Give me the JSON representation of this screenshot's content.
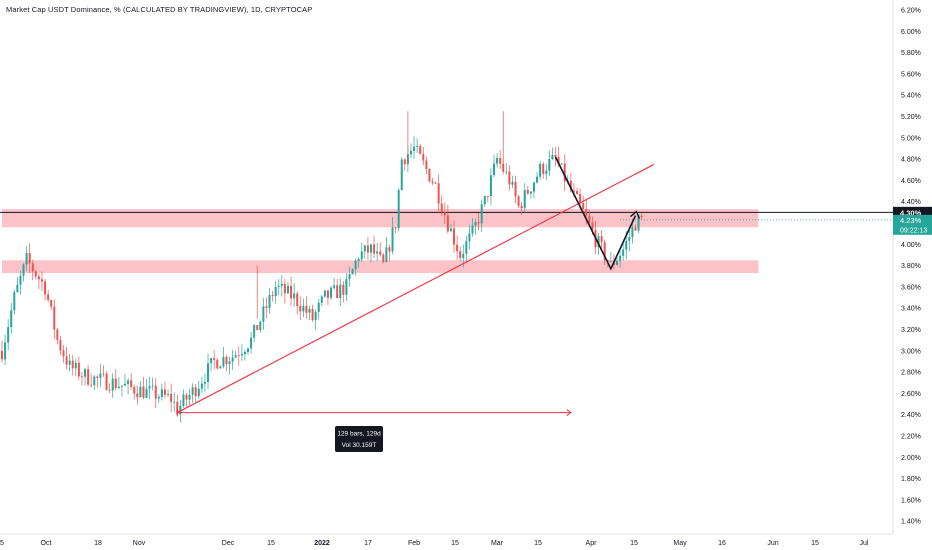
{
  "header": {
    "symbol_title": "Market Cap USDT Dominance, % (CALCULATED BY TRADINGVIEW), 1D, CRYPTOCAP"
  },
  "chart_data": {
    "type": "candlestick",
    "y_unit": "%",
    "ylim": [
      1.3,
      6.25
    ],
    "y_ticks": [
      "6.20%",
      "6.00%",
      "5.80%",
      "5.60%",
      "5.40%",
      "5.20%",
      "5.00%",
      "4.80%",
      "4.60%",
      "4.40%",
      "4.20%",
      "4.00%",
      "3.80%",
      "3.60%",
      "3.40%",
      "3.20%",
      "3.00%",
      "2.80%",
      "2.60%",
      "2.40%",
      "2.20%",
      "2.00%",
      "1.80%",
      "1.60%",
      "1.40%"
    ],
    "x_ticks": [
      "5",
      "Oct",
      "18",
      "Nov",
      "Dec",
      "15",
      "2022",
      "17",
      "Feb",
      "15",
      "Mar",
      "15",
      "Apr",
      "15",
      "May",
      "16",
      "Jun",
      "15",
      "Jul"
    ],
    "x_start_date": "2021-09-14",
    "x_end_date": "2022-07-08",
    "price_label": {
      "value": "4.30%",
      "bg": "#131722"
    },
    "last_label": {
      "value": "4.23%",
      "countdown": "09:22:13",
      "bg": "#26a69a"
    },
    "measure_label": {
      "bars": "129 bars, 129d",
      "volume": "Vol 30.159T"
    },
    "zones": [
      {
        "from": 4.16,
        "to": 4.33,
        "x_from": "2021-09-14",
        "x_to": "2022-05-18"
      },
      {
        "from": 3.73,
        "to": 3.85,
        "x_from": "2021-09-14",
        "x_to": "2022-05-18"
      }
    ],
    "trendline": {
      "x0": "2021-11-10",
      "y0": 2.42,
      "x1": "2022-04-14",
      "y1": 4.75
    },
    "date_range_arrow": {
      "x0": "2021-11-10",
      "x1": "2022-03-18",
      "y": 2.42
    },
    "horizontal_line": 4.3,
    "v_pattern": [
      [
        "2022-03-13",
        4.82
      ],
      [
        "2022-03-31",
        3.77
      ],
      [
        "2022-04-08",
        4.27
      ]
    ],
    "ohlc_knots": [
      [
        "2021-09-14",
        3.0
      ],
      [
        "2021-09-18",
        3.5
      ],
      [
        "2021-09-22",
        3.85
      ],
      [
        "2021-09-28",
        3.6
      ],
      [
        "2021-10-02",
        3.1
      ],
      [
        "2021-10-06",
        2.85
      ],
      [
        "2021-10-12",
        2.75
      ],
      [
        "2021-10-20",
        2.7
      ],
      [
        "2021-10-26",
        2.65
      ],
      [
        "2021-11-02",
        2.6
      ],
      [
        "2021-11-08",
        2.55
      ],
      [
        "2021-11-10",
        2.45
      ],
      [
        "2021-11-16",
        2.65
      ],
      [
        "2021-11-22",
        2.9
      ],
      [
        "2021-11-28",
        2.95
      ],
      [
        "2021-12-04",
        3.1
      ],
      [
        "2021-12-08",
        3.35
      ],
      [
        "2021-12-12",
        3.6
      ],
      [
        "2021-12-18",
        3.5
      ],
      [
        "2021-12-24",
        3.3
      ],
      [
        "2021-12-28",
        3.5
      ],
      [
        "2022-01-04",
        3.6
      ],
      [
        "2022-01-08",
        3.9
      ],
      [
        "2022-01-12",
        3.95
      ],
      [
        "2022-01-16",
        3.8
      ],
      [
        "2022-01-20",
        4.2
      ],
      [
        "2022-01-22",
        4.8
      ],
      [
        "2022-01-26",
        4.9
      ],
      [
        "2022-01-30",
        4.7
      ],
      [
        "2022-02-02",
        4.55
      ],
      [
        "2022-02-06",
        4.2
      ],
      [
        "2022-02-10",
        3.9
      ],
      [
        "2022-02-14",
        4.1
      ],
      [
        "2022-02-18",
        4.4
      ],
      [
        "2022-02-22",
        4.8
      ],
      [
        "2022-02-26",
        4.6
      ],
      [
        "2022-03-01",
        4.35
      ],
      [
        "2022-03-04",
        4.5
      ],
      [
        "2022-03-08",
        4.7
      ],
      [
        "2022-03-13",
        4.8
      ],
      [
        "2022-03-18",
        4.5
      ],
      [
        "2022-03-22",
        4.3
      ],
      [
        "2022-03-26",
        4.05
      ],
      [
        "2022-03-31",
        3.8
      ],
      [
        "2022-04-04",
        3.95
      ],
      [
        "2022-04-08",
        4.2
      ],
      [
        "2022-04-10",
        4.23
      ]
    ],
    "colors": {
      "up": "#26a69a",
      "down": "#ef5350",
      "zone": "rgba(242,54,69,0.3)",
      "trend": "#f23645"
    }
  }
}
